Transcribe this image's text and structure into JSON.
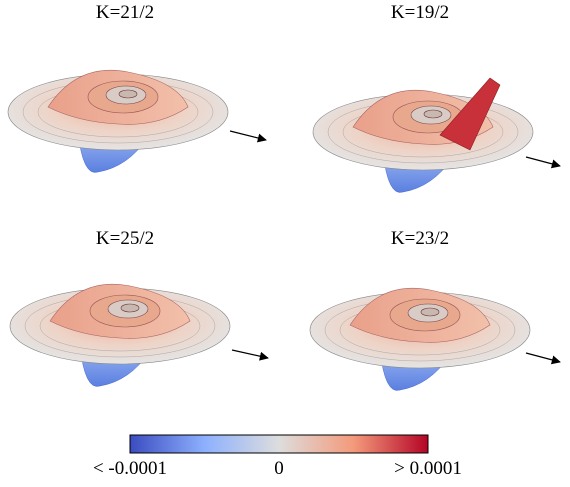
{
  "panels": [
    {
      "title": "K=21/2"
    },
    {
      "title": "K=19/2"
    },
    {
      "title": "K=25/2"
    },
    {
      "title": "K=23/2"
    }
  ],
  "colorbar": {
    "labels": [
      "< -0.0001",
      "0",
      "> 0.0001"
    ]
  }
}
